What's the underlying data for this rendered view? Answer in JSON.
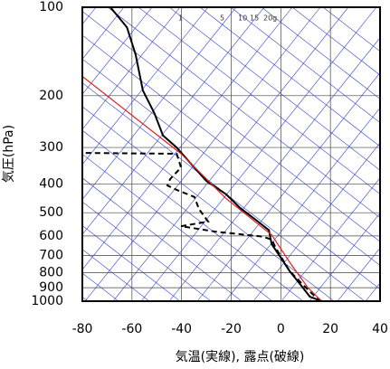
{
  "chart_data": {
    "type": "line",
    "xlabel": "気温(実線), 露点(破線)",
    "ylabel": "気圧(hPa)",
    "xlim": [
      -80,
      40
    ],
    "xticks": [
      -80,
      -60,
      -40,
      -20,
      0,
      20,
      40
    ],
    "ylim": [
      1000,
      100
    ],
    "yticks": [
      100,
      200,
      300,
      400,
      500,
      600,
      700,
      800,
      900,
      1000
    ],
    "yscale": "log",
    "grid": true,
    "mixing_ratio_labels": [
      "1",
      "5",
      "10",
      "15",
      "20g"
    ],
    "series": [
      {
        "color": "#000000",
        "line_style": "solid",
        "x": [
          -68.7,
          -62,
          -58.5,
          -55.6,
          -51,
          -47.5,
          -42,
          -36.6,
          -30,
          -22,
          -16.5,
          -9.2,
          -4.8,
          -3.7,
          0,
          3.6,
          8,
          11.7,
          16.4
        ],
        "values": [
          100,
          117,
          145,
          192,
          229,
          273,
          300,
          338,
          390,
          433,
          481,
          536,
          574,
          639,
          711,
          791,
          880,
          965,
          1000
        ]
      },
      {
        "color": "#000000",
        "line_style": "dashed",
        "x": [
          16.4,
          12.7,
          9,
          3.6,
          -1.9,
          -3.7,
          -7.4,
          -26.4,
          -40.2,
          -29.3,
          -33,
          -34.8,
          -42,
          -45.7,
          -44.6,
          -40.2,
          -42,
          -80
        ],
        "values": [
          1000,
          945,
          880,
          791,
          662,
          617,
          603,
          580,
          556,
          536,
          486,
          442,
          418,
          404,
          384,
          351,
          315,
          313
        ]
      },
      {
        "color": "#e02020",
        "line_style": "solid",
        "x": [
          -80,
          -40.2,
          -22,
          -3.7,
          3.6,
          10.9,
          16.4
        ],
        "values": [
          172,
          315,
          448,
          595,
          738,
          899,
          1000
        ]
      }
    ]
  }
}
